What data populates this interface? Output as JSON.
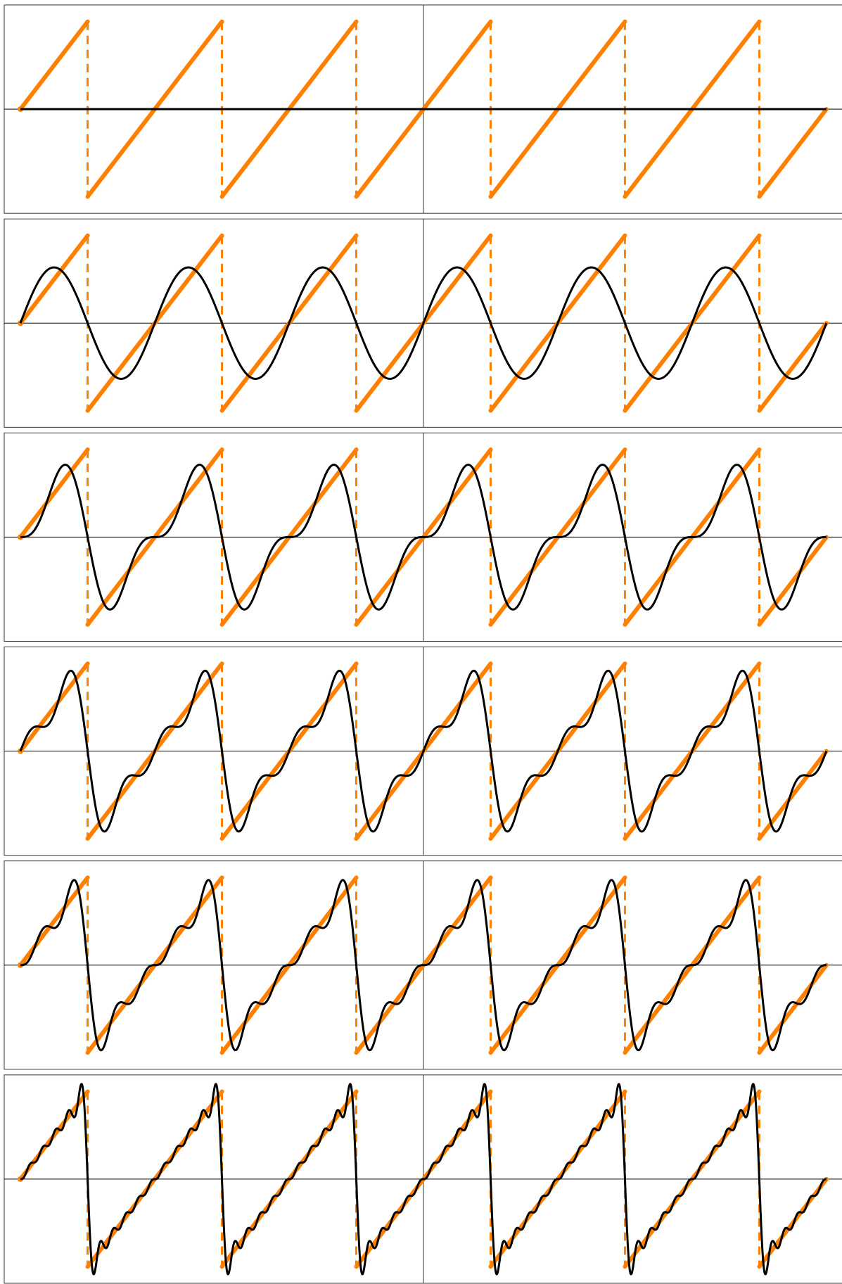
{
  "chart_data": [
    {
      "type": "fourier",
      "terms": 0,
      "periods": 6,
      "color": "#ff8000",
      "curve_color": "#000000"
    },
    {
      "type": "fourier",
      "terms": 1,
      "periods": 6,
      "color": "#ff8000",
      "curve_color": "#000000"
    },
    {
      "type": "fourier",
      "terms": 2,
      "periods": 6,
      "color": "#ff8000",
      "curve_color": "#000000"
    },
    {
      "type": "fourier",
      "terms": 3,
      "periods": 6,
      "color": "#ff8000",
      "curve_color": "#000000"
    },
    {
      "type": "fourier",
      "terms": 4,
      "periods": 6,
      "color": "#ff8000",
      "curve_color": "#000000"
    },
    {
      "type": "fourier",
      "terms": 10,
      "periods": 6,
      "color": "#ff8000",
      "curve_color": "#000000"
    }
  ]
}
